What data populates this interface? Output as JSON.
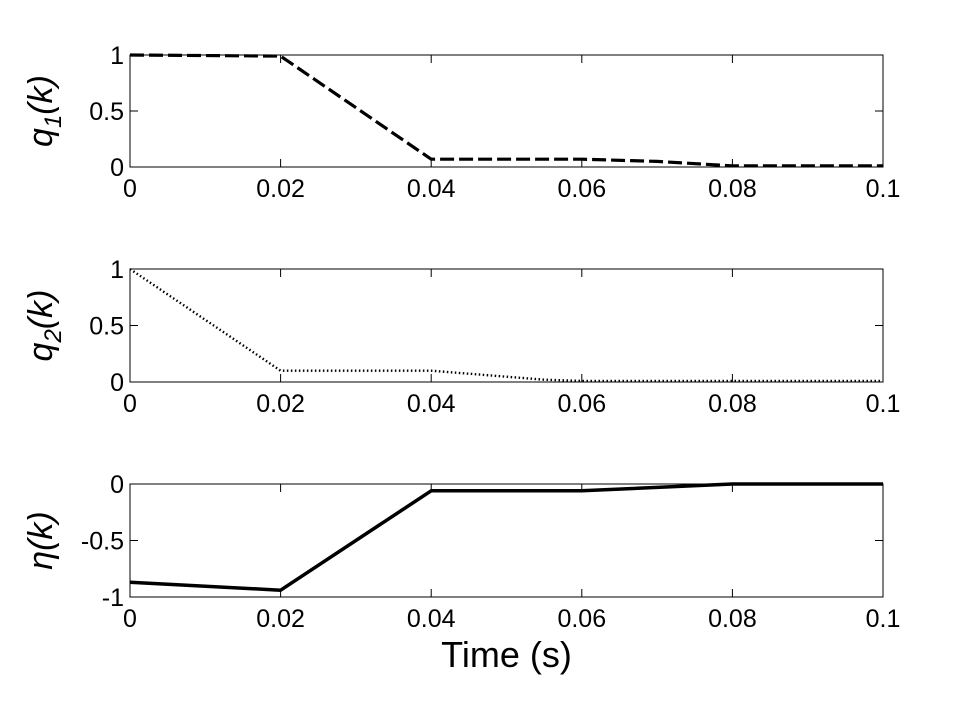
{
  "chart_data": [
    {
      "type": "line",
      "ylabel": {
        "var": "q",
        "sub": "1",
        "arg": "(k)"
      },
      "xlim": [
        0,
        0.1
      ],
      "ylim": [
        0,
        1
      ],
      "xticks": [
        "0",
        "0.02",
        "0.04",
        "0.06",
        "0.08",
        "0.1"
      ],
      "yticks": [
        "0",
        "0.5",
        "1"
      ],
      "grid": false,
      "series": [
        {
          "style": "dashed",
          "x": [
            0,
            0.02,
            0.04,
            0.06,
            0.07,
            0.08,
            0.1
          ],
          "y": [
            1,
            0.99,
            0.07,
            0.07,
            0.05,
            0.01,
            0.01
          ]
        }
      ]
    },
    {
      "type": "line",
      "ylabel": {
        "var": "q",
        "sub": "2",
        "arg": "(k)"
      },
      "xlim": [
        0,
        0.1
      ],
      "ylim": [
        0,
        1
      ],
      "xticks": [
        "0",
        "0.02",
        "0.04",
        "0.06",
        "0.08",
        "0.1"
      ],
      "yticks": [
        "0",
        "0.5",
        "1"
      ],
      "grid": false,
      "series": [
        {
          "style": "dotted",
          "x": [
            0,
            0.02,
            0.04,
            0.055,
            0.06,
            0.08,
            0.1
          ],
          "y": [
            1,
            0.1,
            0.1,
            0.02,
            0.01,
            0.01,
            0.01
          ]
        }
      ]
    },
    {
      "type": "line",
      "ylabel": {
        "var": "η",
        "sub": "",
        "arg": "(k)"
      },
      "xlabel": "Time (s)",
      "xlim": [
        0,
        0.1
      ],
      "ylim": [
        -1,
        0
      ],
      "xticks": [
        "0",
        "0.02",
        "0.04",
        "0.06",
        "0.08",
        "0.1"
      ],
      "yticks": [
        "-1",
        "-0.5",
        "0"
      ],
      "grid": false,
      "series": [
        {
          "style": "solid",
          "x": [
            0,
            0.02,
            0.04,
            0.06,
            0.08,
            0.1
          ],
          "y": [
            -0.87,
            -0.94,
            -0.06,
            -0.06,
            0,
            0
          ]
        }
      ]
    }
  ]
}
